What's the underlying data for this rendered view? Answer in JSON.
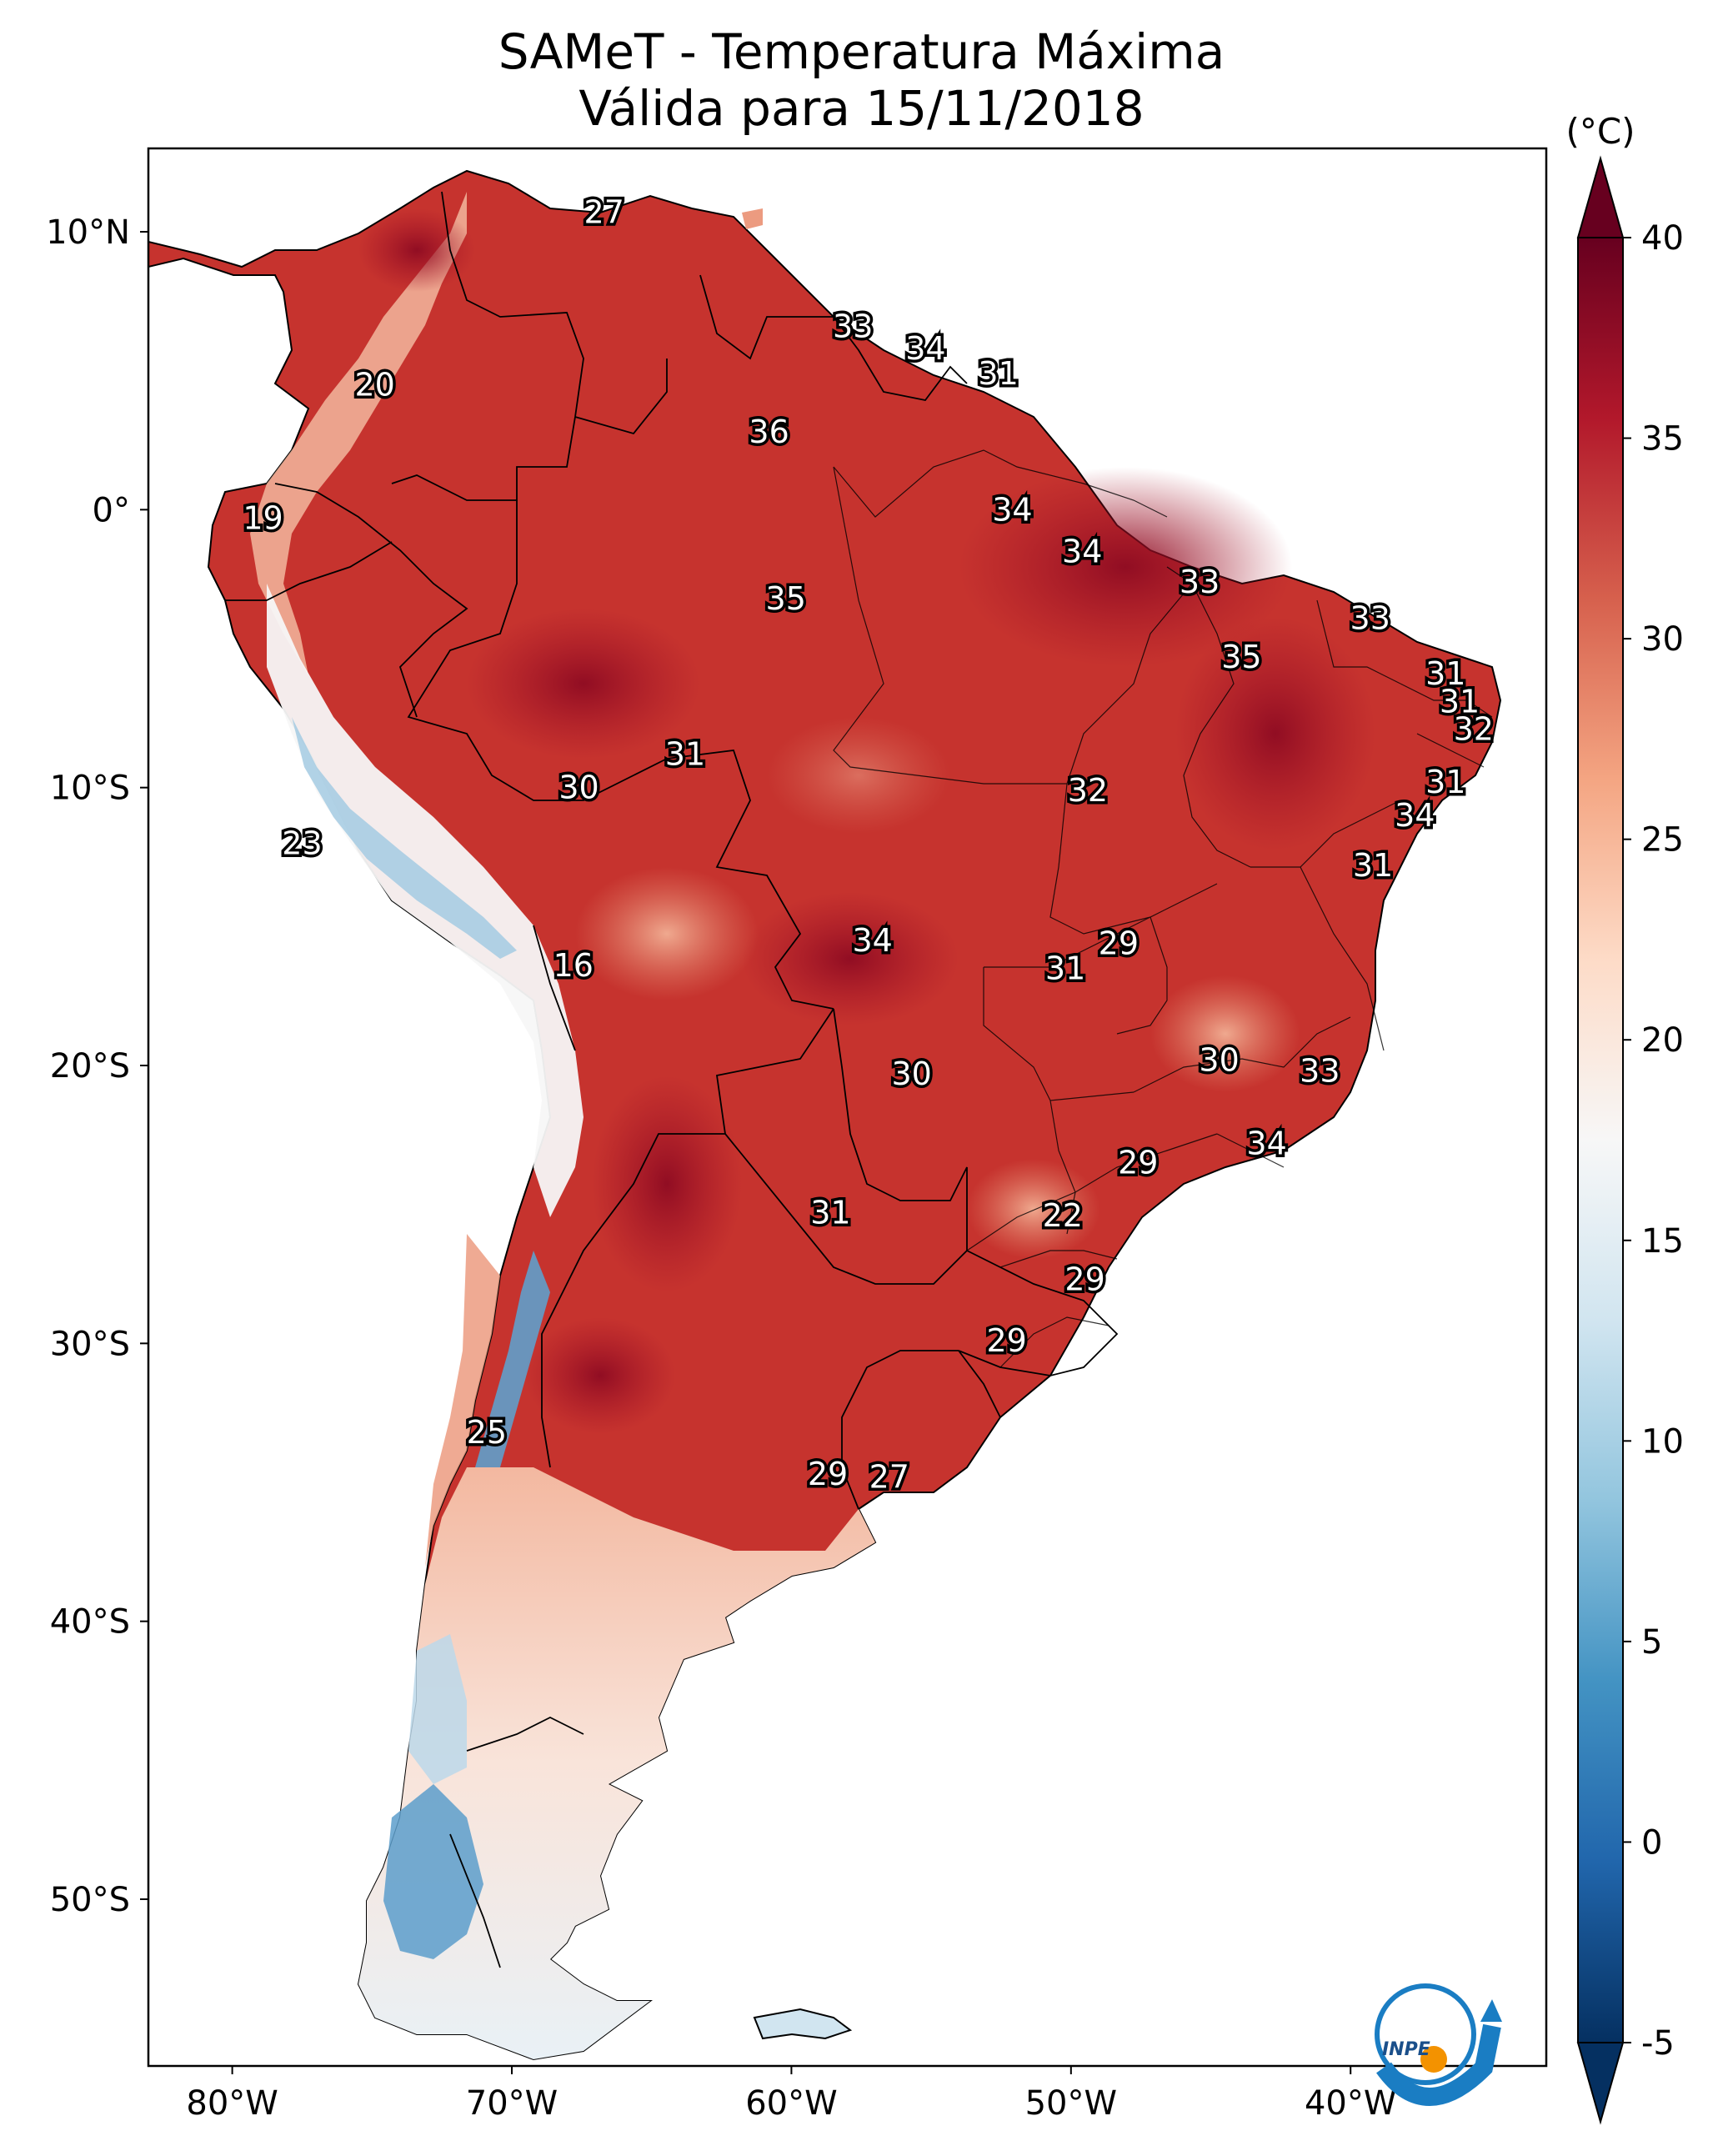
{
  "title": {
    "line1": "SAMeT - Temperatura Máxima",
    "line2": "Válida para 15/11/2018"
  },
  "colorbar": {
    "unit": "(°C)",
    "min": -5,
    "max": 40,
    "ticks": [
      "40",
      "35",
      "30",
      "25",
      "20",
      "15",
      "10",
      "5",
      "0",
      "-5"
    ],
    "tick_values": [
      40,
      35,
      30,
      25,
      20,
      15,
      10,
      5,
      0,
      -5
    ],
    "colors": [
      "#67001f",
      "#b2182b",
      "#d6604d",
      "#f4a582",
      "#fddbc7",
      "#f7f7f7",
      "#d1e5f0",
      "#92c5de",
      "#4393c3",
      "#2166ac",
      "#053061"
    ]
  },
  "map": {
    "lat_labels": [
      "10°N",
      "0°",
      "10°S",
      "20°S",
      "30°S",
      "40°S",
      "50°S"
    ],
    "lat_values": [
      10,
      0,
      -10,
      -20,
      -30,
      -40,
      -50
    ],
    "lon_labels": [
      "80°W",
      "70°W",
      "60°W",
      "50°W",
      "40°W"
    ],
    "lon_values": [
      -80,
      -70,
      -60,
      -50,
      -40
    ],
    "extent": {
      "lon_min": -83,
      "lon_max": -33,
      "lat_min": -56,
      "lat_max": 13
    },
    "temperature_labels": [
      {
        "text": "27",
        "lon": -66.7,
        "lat": 10.7
      },
      {
        "text": "33",
        "lon": -57.8,
        "lat": 6.6
      },
      {
        "text": "34",
        "lon": -55.2,
        "lat": 5.8
      },
      {
        "text": "31",
        "lon": -52.6,
        "lat": 4.9
      },
      {
        "text": "20",
        "lon": -74.9,
        "lat": 4.5
      },
      {
        "text": "36",
        "lon": -60.8,
        "lat": 2.8
      },
      {
        "text": "34",
        "lon": -52.1,
        "lat": 0.0
      },
      {
        "text": "19",
        "lon": -78.9,
        "lat": -0.3
      },
      {
        "text": "34",
        "lon": -49.6,
        "lat": -1.5
      },
      {
        "text": "35",
        "lon": -60.2,
        "lat": -3.2
      },
      {
        "text": "33",
        "lon": -45.4,
        "lat": -2.6
      },
      {
        "text": "33",
        "lon": -39.3,
        "lat": -3.9
      },
      {
        "text": "35",
        "lon": -43.9,
        "lat": -5.3
      },
      {
        "text": "31",
        "lon": -36.6,
        "lat": -5.9
      },
      {
        "text": "31",
        "lon": -36.1,
        "lat": -6.9
      },
      {
        "text": "32",
        "lon": -35.6,
        "lat": -7.9
      },
      {
        "text": "31",
        "lon": -63.8,
        "lat": -8.8
      },
      {
        "text": "30",
        "lon": -67.6,
        "lat": -10.0
      },
      {
        "text": "31",
        "lon": -36.6,
        "lat": -9.8
      },
      {
        "text": "32",
        "lon": -49.4,
        "lat": -10.1
      },
      {
        "text": "34",
        "lon": -37.7,
        "lat": -11.0
      },
      {
        "text": "23",
        "lon": -77.5,
        "lat": -12.0
      },
      {
        "text": "31",
        "lon": -39.2,
        "lat": -12.8
      },
      {
        "text": "29",
        "lon": -48.3,
        "lat": -15.6
      },
      {
        "text": "34",
        "lon": -57.1,
        "lat": -15.5
      },
      {
        "text": "31",
        "lon": -50.2,
        "lat": -16.5
      },
      {
        "text": "16",
        "lon": -67.8,
        "lat": -16.4
      },
      {
        "text": "30",
        "lon": -44.7,
        "lat": -19.8
      },
      {
        "text": "33",
        "lon": -41.1,
        "lat": -20.2
      },
      {
        "text": "30",
        "lon": -55.7,
        "lat": -20.3
      },
      {
        "text": "34",
        "lon": -43.0,
        "lat": -22.8
      },
      {
        "text": "29",
        "lon": -47.6,
        "lat": -23.5
      },
      {
        "text": "31",
        "lon": -58.6,
        "lat": -25.3
      },
      {
        "text": "22",
        "lon": -50.3,
        "lat": -25.4
      },
      {
        "text": "29",
        "lon": -49.5,
        "lat": -27.7
      },
      {
        "text": "29",
        "lon": -52.3,
        "lat": -29.9
      },
      {
        "text": "25",
        "lon": -70.9,
        "lat": -33.2
      },
      {
        "text": "29",
        "lon": -58.7,
        "lat": -34.7
      },
      {
        "text": "27",
        "lon": -56.5,
        "lat": -34.8
      }
    ]
  },
  "logo": {
    "text": "INPE"
  }
}
